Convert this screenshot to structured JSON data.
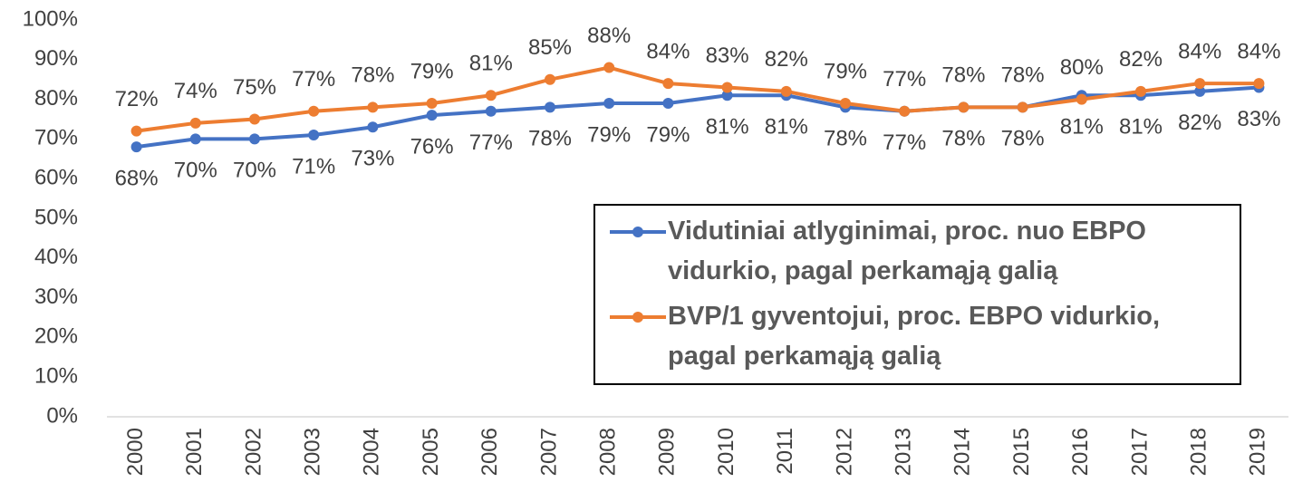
{
  "chart_data": {
    "type": "line",
    "categories": [
      "2000",
      "2001",
      "2002",
      "2003",
      "2004",
      "2005",
      "2006",
      "2007",
      "2008",
      "2009",
      "2010",
      "2011",
      "2012",
      "2013",
      "2014",
      "2015",
      "2016",
      "2017",
      "2018",
      "2019"
    ],
    "series": [
      {
        "name": "Vidutiniai atlyginimai, proc. nuo EBPO vidurkio, pagal perkamąją galią",
        "color": "#4472c4",
        "values": [
          68,
          70,
          70,
          71,
          73,
          76,
          77,
          78,
          79,
          79,
          81,
          81,
          78,
          77,
          78,
          78,
          81,
          81,
          82,
          83
        ],
        "value_labels": [
          "68%",
          "70%",
          "70%",
          "71%",
          "73%",
          "76%",
          "77%",
          "78%",
          "79%",
          "79%",
          "81%",
          "81%",
          "78%",
          "77%",
          "78%",
          "78%",
          "81%",
          "81%",
          "82%",
          "83%"
        ]
      },
      {
        "name": "BVP/1 gyventojui,  proc. EBPO vidurkio, pagal perkamąją galią",
        "color": "#ed7d31",
        "values": [
          72,
          74,
          75,
          77,
          78,
          79,
          81,
          85,
          88,
          84,
          83,
          82,
          79,
          77,
          78,
          78,
          80,
          82,
          84,
          84
        ],
        "value_labels": [
          "72%",
          "74%",
          "75%",
          "77%",
          "78%",
          "79%",
          "81%",
          "85%",
          "88%",
          "84%",
          "83%",
          "82%",
          "79%",
          "77%",
          "78%",
          "78%",
          "80%",
          "82%",
          "84%",
          "84%"
        ]
      }
    ],
    "ylim": [
      0,
      100
    ],
    "yticks": [
      {
        "value": 0,
        "label": "0%"
      },
      {
        "value": 10,
        "label": "10%"
      },
      {
        "value": 20,
        "label": "20%"
      },
      {
        "value": 30,
        "label": "30%"
      },
      {
        "value": 40,
        "label": "40%"
      },
      {
        "value": 50,
        "label": "50%"
      },
      {
        "value": 60,
        "label": "60%"
      },
      {
        "value": 70,
        "label": "70%"
      },
      {
        "value": 80,
        "label": "80%"
      },
      {
        "value": 90,
        "label": "90%"
      },
      {
        "value": 100,
        "label": "100%"
      }
    ],
    "grid": false,
    "legend": "inside"
  }
}
